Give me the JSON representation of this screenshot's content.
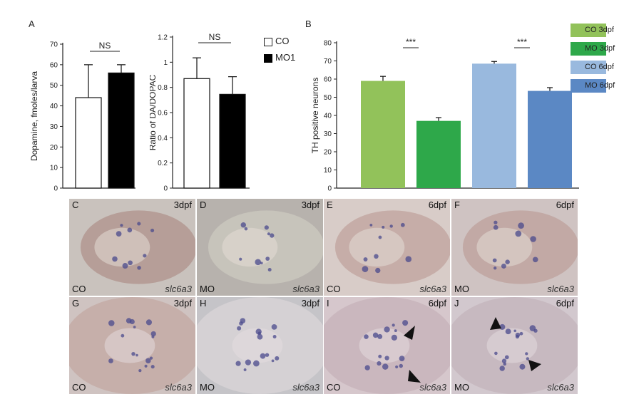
{
  "figure": {
    "panel_labels": {
      "a": "A",
      "b": "B"
    },
    "legend_a": [
      {
        "label": "CO",
        "color": "#ffffff"
      },
      {
        "label": "MO1",
        "color": "#000000"
      }
    ],
    "legend_b": [
      {
        "label": "CO 3dpf",
        "color": "#92c25a"
      },
      {
        "label": "MO 3dpf",
        "color": "#2ea84a"
      },
      {
        "label": "CO 6dpf",
        "color": "#99b9de"
      },
      {
        "label": "MO 6dpf",
        "color": "#5b88c4"
      }
    ],
    "photos": [
      {
        "letter": "C",
        "stage": "3dpf",
        "condition": "CO",
        "gene": "slc6a3"
      },
      {
        "letter": "D",
        "stage": "3dpf",
        "condition": "MO",
        "gene": "slc6a3"
      },
      {
        "letter": "E",
        "stage": "6dpf",
        "condition": "CO",
        "gene": "slc6a3"
      },
      {
        "letter": "F",
        "stage": "6dpf",
        "condition": "MO",
        "gene": "slc6a3"
      },
      {
        "letter": "G",
        "stage": "3dpf",
        "condition": "CO",
        "gene": "slc6a3"
      },
      {
        "letter": "H",
        "stage": "3dpf",
        "condition": "MO",
        "gene": "slc6a3"
      },
      {
        "letter": "I",
        "stage": "6dpf",
        "condition": "CO",
        "gene": "slc6a3"
      },
      {
        "letter": "J",
        "stage": "6dpf",
        "condition": "MO",
        "gene": "slc6a3"
      }
    ]
  },
  "chart_data": [
    {
      "type": "bar",
      "title": "",
      "xlabel": "",
      "ylabel": "Dopamine, fmoles/larva",
      "categories": [
        "CO",
        "MO1"
      ],
      "values": [
        44,
        56
      ],
      "errors": [
        16,
        4
      ],
      "colors": [
        "#ffffff",
        "#000000"
      ],
      "ylim": [
        0,
        70
      ],
      "yticks": [
        "0",
        "10",
        "20",
        "30",
        "40",
        "50",
        "60",
        "70"
      ],
      "significance": [
        {
          "label": "NS",
          "from": 0,
          "to": 1
        }
      ]
    },
    {
      "type": "bar",
      "title": "",
      "xlabel": "",
      "ylabel": "Ratio of DA/DOPAC",
      "categories": [
        "CO",
        "MO1"
      ],
      "values": [
        0.87,
        0.745
      ],
      "errors": [
        0.165,
        0.14
      ],
      "colors": [
        "#ffffff",
        "#000000"
      ],
      "ylim": [
        0,
        1.2
      ],
      "yticks": [
        "0",
        "0.2",
        "0.4",
        "0.6",
        "0.8",
        "1",
        "1.2"
      ],
      "significance": [
        {
          "label": "NS",
          "from": 0,
          "to": 1
        }
      ]
    },
    {
      "type": "bar",
      "title": "",
      "xlabel": "",
      "ylabel": "TH positive neurons",
      "categories": [
        "CO 3dpf",
        "MO 3dpf",
        "CO 6dpf",
        "MO 6dpf"
      ],
      "values": [
        59,
        37,
        68.5,
        53.5
      ],
      "errors": [
        2.5,
        1.8,
        1.2,
        1.8
      ],
      "colors": [
        "#92c25a",
        "#2ea84a",
        "#99b9de",
        "#5b88c4"
      ],
      "ylim": [
        0,
        80
      ],
      "yticks": [
        "0",
        "10",
        "20",
        "30",
        "40",
        "50",
        "60",
        "70",
        "80"
      ],
      "significance": [
        {
          "label": "***",
          "from": 0,
          "to": 1
        },
        {
          "label": "***",
          "from": 2,
          "to": 3
        }
      ]
    }
  ]
}
